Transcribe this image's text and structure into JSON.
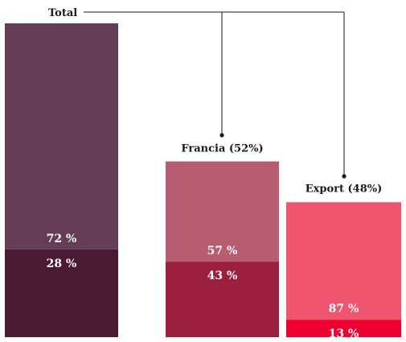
{
  "chart_data": {
    "type": "bar",
    "stacked": true,
    "grid": false,
    "ylim": [
      0,
      100
    ],
    "bars": [
      {
        "label": "Total",
        "colors": [
          "#4a1a33",
          "#653d55"
        ],
        "segments": [
          {
            "value": 28,
            "text": "28 %"
          },
          {
            "value": 72,
            "text": "72 %"
          }
        ]
      },
      {
        "label": "Francia (52%)",
        "colors": [
          "#9b203d",
          "#b85c72"
        ],
        "segments": [
          {
            "value": 43,
            "text": "43 %"
          },
          {
            "value": 57,
            "text": "57 %"
          }
        ]
      },
      {
        "label": "Export (48%)",
        "colors": [
          "#ee0030",
          "#f05570"
        ],
        "segments": [
          {
            "value": 13,
            "text": "13 %"
          },
          {
            "value": 87,
            "text": "87 %"
          }
        ]
      }
    ],
    "relative_scale": [
      1.0,
      0.56,
      0.43
    ]
  }
}
